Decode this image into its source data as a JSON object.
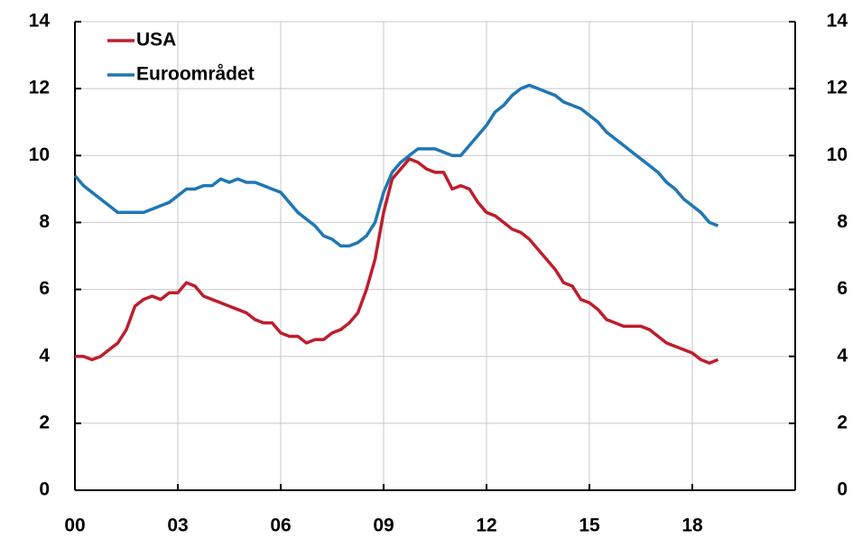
{
  "chart_data": {
    "type": "line",
    "x": [
      0,
      0.25,
      0.5,
      0.75,
      1,
      1.25,
      1.5,
      1.75,
      2,
      2.25,
      2.5,
      2.75,
      3,
      3.25,
      3.5,
      3.75,
      4,
      4.25,
      4.5,
      4.75,
      5,
      5.25,
      5.5,
      5.75,
      6,
      6.25,
      6.5,
      6.75,
      7,
      7.25,
      7.5,
      7.75,
      8,
      8.25,
      8.5,
      8.75,
      9,
      9.25,
      9.5,
      9.75,
      10,
      10.25,
      10.5,
      10.75,
      11,
      11.25,
      11.5,
      11.75,
      12,
      12.25,
      12.5,
      12.75,
      13,
      13.25,
      13.5,
      13.75,
      14,
      14.25,
      14.5,
      14.75,
      15,
      15.25,
      15.5,
      15.75,
      16,
      16.25,
      16.5,
      16.75,
      17,
      17.25,
      17.5,
      17.75,
      18,
      18.25,
      18.5,
      18.75
    ],
    "series": [
      {
        "name": "USA",
        "color": "#be1e2d",
        "values": [
          4.0,
          4.0,
          3.9,
          4.0,
          4.2,
          4.4,
          4.8,
          5.5,
          5.7,
          5.8,
          5.7,
          5.9,
          5.9,
          6.2,
          6.1,
          5.8,
          5.7,
          5.6,
          5.5,
          5.4,
          5.3,
          5.1,
          5.0,
          5.0,
          4.7,
          4.6,
          4.6,
          4.4,
          4.5,
          4.5,
          4.7,
          4.8,
          5.0,
          5.3,
          6.0,
          6.9,
          8.3,
          9.3,
          9.6,
          9.9,
          9.8,
          9.6,
          9.5,
          9.5,
          9.0,
          9.1,
          9.0,
          8.6,
          8.3,
          8.2,
          8.0,
          7.8,
          7.7,
          7.5,
          7.2,
          6.9,
          6.6,
          6.2,
          6.1,
          5.7,
          5.6,
          5.4,
          5.1,
          5.0,
          4.9,
          4.9,
          4.9,
          4.8,
          4.6,
          4.4,
          4.3,
          4.2,
          4.1,
          3.9,
          3.8,
          3.9
        ]
      },
      {
        "name": "Euroområdet",
        "color": "#1f77b4",
        "values": [
          9.4,
          9.1,
          8.9,
          8.7,
          8.5,
          8.3,
          8.3,
          8.3,
          8.3,
          8.4,
          8.5,
          8.6,
          8.8,
          9.0,
          9.0,
          9.1,
          9.1,
          9.3,
          9.2,
          9.3,
          9.2,
          9.2,
          9.1,
          9.0,
          8.9,
          8.6,
          8.3,
          8.1,
          7.9,
          7.6,
          7.5,
          7.3,
          7.3,
          7.4,
          7.6,
          8.0,
          8.9,
          9.5,
          9.8,
          10.0,
          10.2,
          10.2,
          10.2,
          10.1,
          10.0,
          10.0,
          10.3,
          10.6,
          10.9,
          11.3,
          11.5,
          11.8,
          12.0,
          12.1,
          12.0,
          11.9,
          11.8,
          11.6,
          11.5,
          11.4,
          11.2,
          11.0,
          10.7,
          10.5,
          10.3,
          10.1,
          9.9,
          9.7,
          9.5,
          9.2,
          9.0,
          8.7,
          8.5,
          8.3,
          8.0,
          7.9
        ]
      }
    ],
    "xlim": [
      0,
      21
    ],
    "xticks": [
      {
        "value": 0,
        "label": "00"
      },
      {
        "value": 3,
        "label": "03"
      },
      {
        "value": 6,
        "label": "06"
      },
      {
        "value": 9,
        "label": "09"
      },
      12,
      15,
      18
    ],
    "ylim": [
      0,
      14
    ],
    "yticks": [
      0,
      2,
      4,
      6,
      8,
      10,
      12,
      14
    ],
    "y2lim": [
      0,
      14
    ],
    "y2ticks": [
      0,
      2,
      4,
      6,
      8,
      10,
      12,
      14
    ],
    "grid": true,
    "legend": "top-left"
  }
}
